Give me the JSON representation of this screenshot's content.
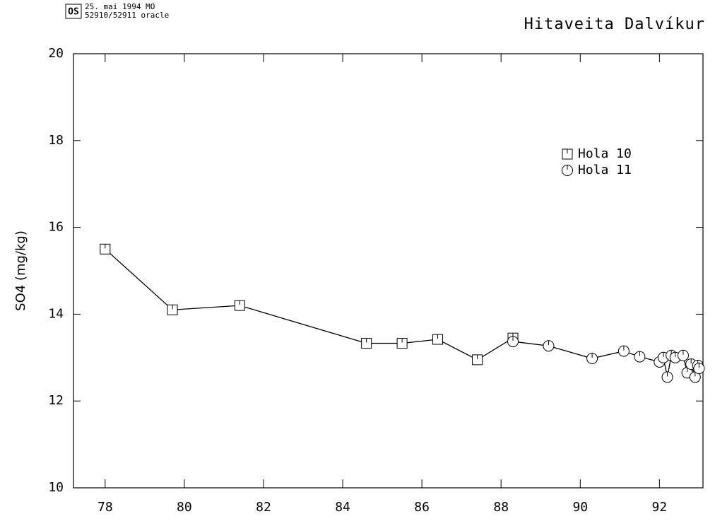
{
  "header": {
    "line1": "25. mai 1994 MO",
    "line2": "52910/52911  oracle",
    "logo": "OS"
  },
  "chart_data": {
    "type": "line",
    "title": "Hitaveita Dalvíkur",
    "ylabel": "SO4  (mg/kg)",
    "xlim": [
      77.2,
      93.1
    ],
    "ylim": [
      10,
      20
    ],
    "xticks": [
      78,
      80,
      82,
      84,
      86,
      88,
      90,
      92
    ],
    "yticks": [
      10,
      12,
      14,
      16,
      18,
      20
    ],
    "legend": "upper right",
    "series": [
      {
        "name": "Hola 10",
        "marker": "square",
        "color": "#000000",
        "x": [
          78.0,
          79.7,
          81.4,
          84.6,
          85.5,
          86.4,
          87.4,
          88.3
        ],
        "values": [
          15.5,
          14.1,
          14.2,
          13.33,
          13.33,
          13.42,
          12.95,
          13.45
        ]
      },
      {
        "name": "Hola 11",
        "marker": "circle",
        "color": "#000000",
        "x": [
          88.3,
          89.2,
          90.3,
          91.1,
          91.5,
          92.0,
          92.1,
          92.2,
          92.3,
          92.4,
          92.6,
          92.7,
          92.8,
          92.9,
          92.97,
          93.0
        ],
        "values": [
          13.37,
          13.27,
          12.98,
          13.15,
          13.02,
          12.9,
          13.0,
          12.55,
          13.05,
          13.0,
          13.05,
          12.65,
          12.85,
          12.55,
          12.82,
          12.75
        ]
      }
    ]
  }
}
